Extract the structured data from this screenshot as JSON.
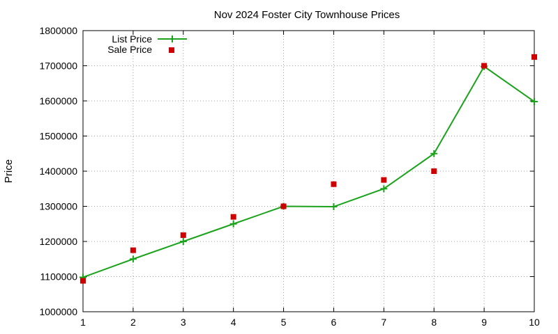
{
  "chart_data": {
    "type": "line",
    "title": "Nov 2024 Foster City Townhouse Prices",
    "xlabel": "",
    "ylabel": "Price",
    "x": [
      1,
      2,
      3,
      4,
      5,
      6,
      7,
      8,
      9,
      10
    ],
    "xlim": [
      1,
      10
    ],
    "ylim": [
      1000000,
      1800000
    ],
    "xticks": [
      "1",
      "2",
      "3",
      "4",
      "5",
      "6",
      "7",
      "8",
      "9",
      "10"
    ],
    "yticks": [
      "1000000",
      "1100000",
      "1200000",
      "1300000",
      "1400000",
      "1500000",
      "1600000",
      "1700000",
      "1800000"
    ],
    "grid": true,
    "legend_position": "top-left",
    "series": [
      {
        "name": "List Price",
        "style": "line-with-plus-markers",
        "color": "#1aa31a",
        "values": [
          1098000,
          1150000,
          1200000,
          1250000,
          1300000,
          1299000,
          1350000,
          1450000,
          1698000,
          1598000
        ]
      },
      {
        "name": "Sale Price",
        "style": "square-markers",
        "color": "#cc0000",
        "values": [
          1088000,
          1175000,
          1218000,
          1270000,
          1300000,
          1363000,
          1375000,
          1400000,
          1700000,
          1725000
        ]
      }
    ]
  }
}
